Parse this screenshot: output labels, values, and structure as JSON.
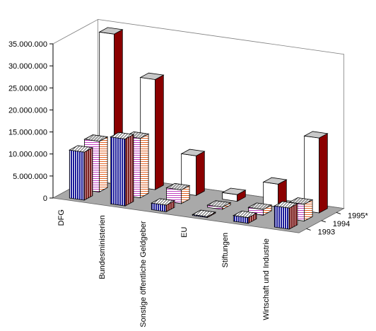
{
  "chart_data": {
    "type": "bar",
    "subtype": "3d-column",
    "categories": [
      "DFG",
      "Bundesministerien",
      "Sonstige öffentliche Geldgeber",
      "EU",
      "Stiftungen",
      "Wirtschaft und Industrie"
    ],
    "series": [
      {
        "name": "1993",
        "values": [
          10900000,
          15200000,
          1500000,
          200000,
          1300000,
          4800000
        ]
      },
      {
        "name": "1994",
        "values": [
          11500000,
          13500000,
          3100000,
          500000,
          1300000,
          3800000
        ]
      },
      {
        "name": "1995*",
        "values": [
          34000000,
          25000000,
          9000000,
          1500000,
          5200000,
          17000000
        ]
      }
    ],
    "ylim": [
      0,
      35000000
    ],
    "y_ticks": [
      "0",
      "5.000.000",
      "10.000.000",
      "15.000.000",
      "20.000.000",
      "25.000.000",
      "30.000.000",
      "35.000.000"
    ],
    "grid": false,
    "colors": {
      "1993": {
        "front": "#1a1a9a",
        "side": "#7a2020",
        "top": "#8a8a8a",
        "pattern": "vertical stripes"
      },
      "1994": {
        "front": "#d07ad0",
        "side": "#e08040",
        "top": "#9a9a9a",
        "pattern": "horizontal stripes"
      },
      "1995*": {
        "front": "#ffffff",
        "side": "#8b0000",
        "top": "#c8c8c8",
        "pattern": "solid"
      }
    },
    "floor_color": "#a9a9a9",
    "wall_color": "#ffffff"
  }
}
